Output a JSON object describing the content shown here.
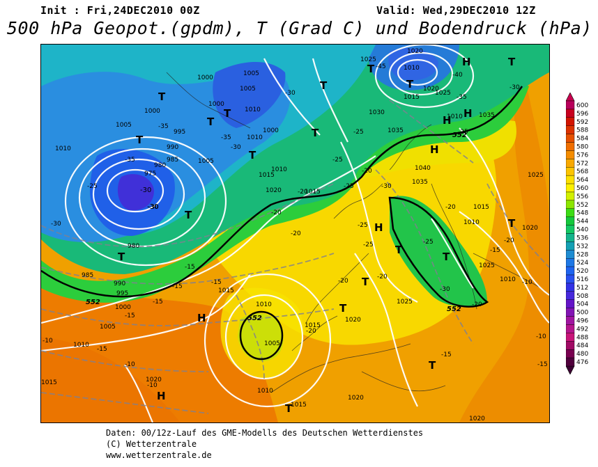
{
  "header": {
    "init": "Init : Fri,24DEC2010 00Z",
    "valid": "Valid: Wed,29DEC2010 12Z",
    "title": "500 hPa Geopot.(gpdm), T (Grad C) und Bodendruck (hPa)"
  },
  "legend": {
    "levels": [
      "600",
      "596",
      "592",
      "588",
      "584",
      "580",
      "576",
      "572",
      "568",
      "564",
      "560",
      "556",
      "552",
      "548",
      "544",
      "540",
      "536",
      "532",
      "528",
      "524",
      "520",
      "516",
      "512",
      "508",
      "504",
      "500",
      "496",
      "492",
      "488",
      "484",
      "480",
      "476"
    ],
    "colors": [
      "#b8005a",
      "#c8001e",
      "#d21400",
      "#dc3200",
      "#e65000",
      "#f06e00",
      "#f48c00",
      "#f8a800",
      "#fcc400",
      "#fce000",
      "#fcf000",
      "#d2f000",
      "#8ce600",
      "#3cdc14",
      "#14c83c",
      "#14c864",
      "#14b48c",
      "#14a0b4",
      "#1e8cd2",
      "#1e78e6",
      "#1e64f0",
      "#2850f0",
      "#3232e6",
      "#4628dc",
      "#6414c8",
      "#8214b4",
      "#a014a0",
      "#b4148c",
      "#c81478",
      "#a00a64",
      "#780050",
      "#50003c"
    ]
  },
  "map": {
    "pressure_labels": [
      "1025",
      "1020",
      "1010",
      "1015",
      "1020",
      "1025",
      "1000",
      "1005",
      "1005",
      "1000",
      "1010",
      "1030",
      "1035",
      "1010",
      "1035",
      "995",
      "1005",
      "1000",
      "1000",
      "1010",
      "1040",
      "990",
      "985",
      "1005",
      "1010",
      "1015",
      "1035",
      "975",
      "980",
      "1010",
      "1020",
      "1015",
      "1015",
      "1025",
      "980",
      "1010",
      "1020",
      "985",
      "990",
      "995",
      "1000",
      "1005",
      "1010",
      "1025",
      "1015",
      "1015",
      "1010",
      "1020",
      "1025",
      "1010",
      "1005",
      "1015",
      "1020",
      "1020",
      "1015",
      "1010",
      "1020"
    ],
    "temperature_labels": [
      "-45",
      "-40",
      "-35",
      "-30",
      "-35",
      "-25",
      "-30",
      "-25",
      "-35",
      "-30",
      "-25",
      "-20",
      "-30",
      "-25",
      "-20",
      "-35",
      "-30",
      "-20",
      "-25",
      "-30",
      "-20",
      "-20",
      "-15",
      "-25",
      "-20",
      "-25",
      "-15",
      "-20",
      "-20",
      "-25",
      "-30",
      "-15",
      "-15",
      "-10",
      "-15",
      "-15",
      "-20",
      "-10",
      "-10",
      "-10",
      "-10",
      "-15",
      "-15",
      "-20",
      "-15"
    ],
    "contour_labels": [
      "552",
      "552",
      "552",
      "552"
    ],
    "highs": [
      "H",
      "H",
      "H",
      "H",
      "H",
      "H",
      "H"
    ],
    "lows": [
      "T",
      "T",
      "T",
      "T",
      "T",
      "T",
      "T",
      "T",
      "T",
      "T",
      "T",
      "T",
      "T",
      "T",
      "T",
      "T",
      "T",
      "T",
      "T"
    ],
    "low_center_value": "-30",
    "low_center_value_2": "-30"
  },
  "footer": {
    "line1": "Daten: 00/12z-Lauf des GME-Modells des Deutschen Wetterdienstes",
    "line2": "(C) Wetterzentrale",
    "line3": "www.wetterzentrale.de"
  }
}
